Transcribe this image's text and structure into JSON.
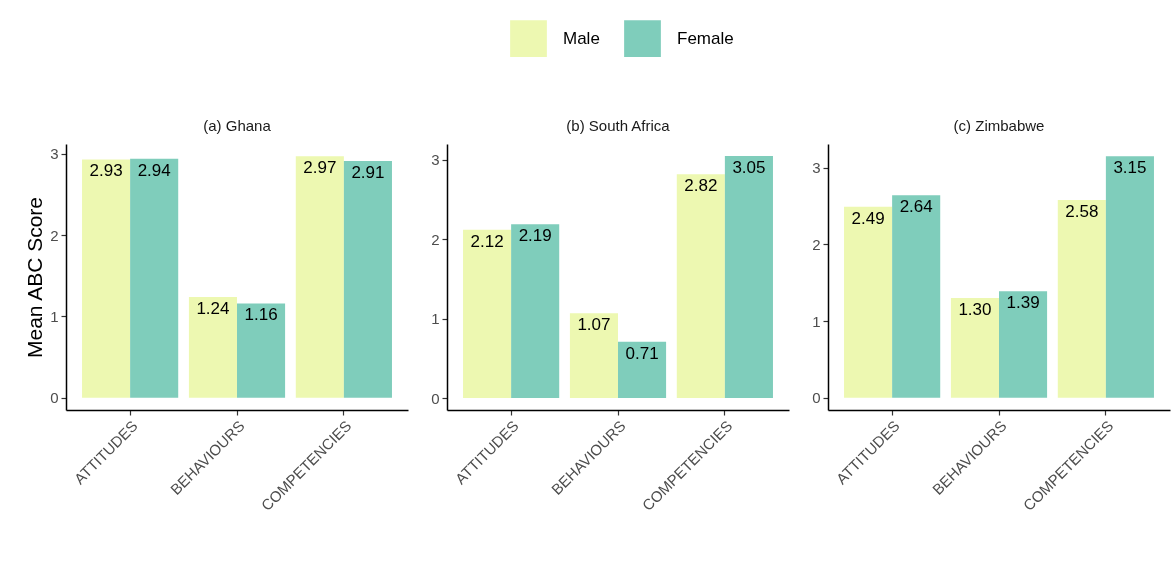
{
  "chart_data": [
    {
      "type": "bar",
      "title": "(a) Ghana",
      "ylabel": "Mean ABC Score",
      "categories": [
        "ATTITUDES",
        "BEHAVIOURS",
        "COMPETENCIES"
      ],
      "series": [
        {
          "name": "Male",
          "color": "#edf8b1",
          "values": [
            2.93,
            1.24,
            2.97
          ],
          "value_labels": [
            "2.93",
            "1.24",
            "2.97"
          ]
        },
        {
          "name": "Female",
          "color": "#7fcdbb",
          "values": [
            2.94,
            1.16,
            2.91
          ],
          "value_labels": [
            "2.94",
            "1.16",
            "2.91"
          ]
        }
      ],
      "ylim": [
        -0.15,
        3.12
      ],
      "yticks": [
        0,
        1,
        2,
        3
      ],
      "legend": "top"
    },
    {
      "type": "bar",
      "title": "(b) South Africa",
      "categories": [
        "ATTITUDES",
        "BEHAVIOURS",
        "COMPETENCIES"
      ],
      "series": [
        {
          "name": "Male",
          "color": "#edf8b1",
          "values": [
            2.12,
            1.07,
            2.82
          ],
          "value_labels": [
            "2.12",
            "1.07",
            "2.82"
          ]
        },
        {
          "name": "Female",
          "color": "#7fcdbb",
          "values": [
            2.19,
            0.71,
            3.05
          ],
          "value_labels": [
            "2.19",
            "0.71",
            "3.05"
          ]
        }
      ],
      "ylim": [
        -0.15,
        3.2
      ],
      "yticks": [
        0,
        1,
        2,
        3
      ],
      "legend": "top"
    },
    {
      "type": "bar",
      "title": "(c) Zimbabwe",
      "categories": [
        "ATTITUDES",
        "BEHAVIOURS",
        "COMPETENCIES"
      ],
      "series": [
        {
          "name": "Male",
          "color": "#edf8b1",
          "values": [
            2.49,
            1.3,
            2.58
          ],
          "value_labels": [
            "2.49",
            "1.30",
            "2.58"
          ]
        },
        {
          "name": "Female",
          "color": "#7fcdbb",
          "values": [
            2.64,
            1.39,
            3.15
          ],
          "value_labels": [
            "2.64",
            "1.39",
            "3.15"
          ]
        }
      ],
      "ylim": [
        -0.16,
        3.31
      ],
      "yticks": [
        0,
        1,
        2,
        3
      ],
      "legend": "top"
    }
  ]
}
